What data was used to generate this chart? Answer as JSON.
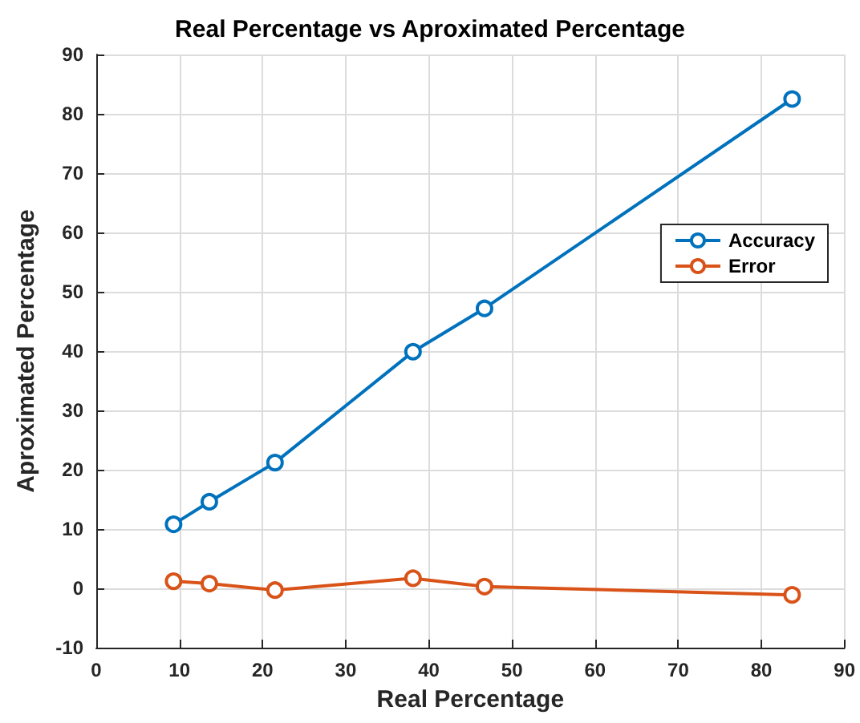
{
  "chart_data": {
    "type": "line",
    "title": "Real Percentage vs Aproximated Percentage",
    "xlabel": "Real Percentage",
    "ylabel": "Aproximated Percentage",
    "x": [
      9.3,
      13.6,
      21.5,
      38.1,
      46.7,
      83.7
    ],
    "series": [
      {
        "name": "Accuracy",
        "color": "#0072bd",
        "values": [
          10.8,
          14.6,
          21.2,
          39.9,
          47.2,
          82.5
        ]
      },
      {
        "name": "Error",
        "color": "#d95319",
        "values": [
          1.2,
          0.8,
          -0.3,
          1.7,
          0.3,
          -1.1
        ]
      }
    ],
    "xlim": [
      0,
      90
    ],
    "xticks": [
      0,
      10,
      20,
      30,
      40,
      50,
      60,
      70,
      80,
      90
    ],
    "ylim": [
      -10,
      90
    ],
    "yticks": [
      -10,
      0,
      10,
      20,
      30,
      40,
      50,
      60,
      70,
      80,
      90
    ],
    "grid": true,
    "legend": "right",
    "marker": "circle",
    "line_style": "solid"
  }
}
